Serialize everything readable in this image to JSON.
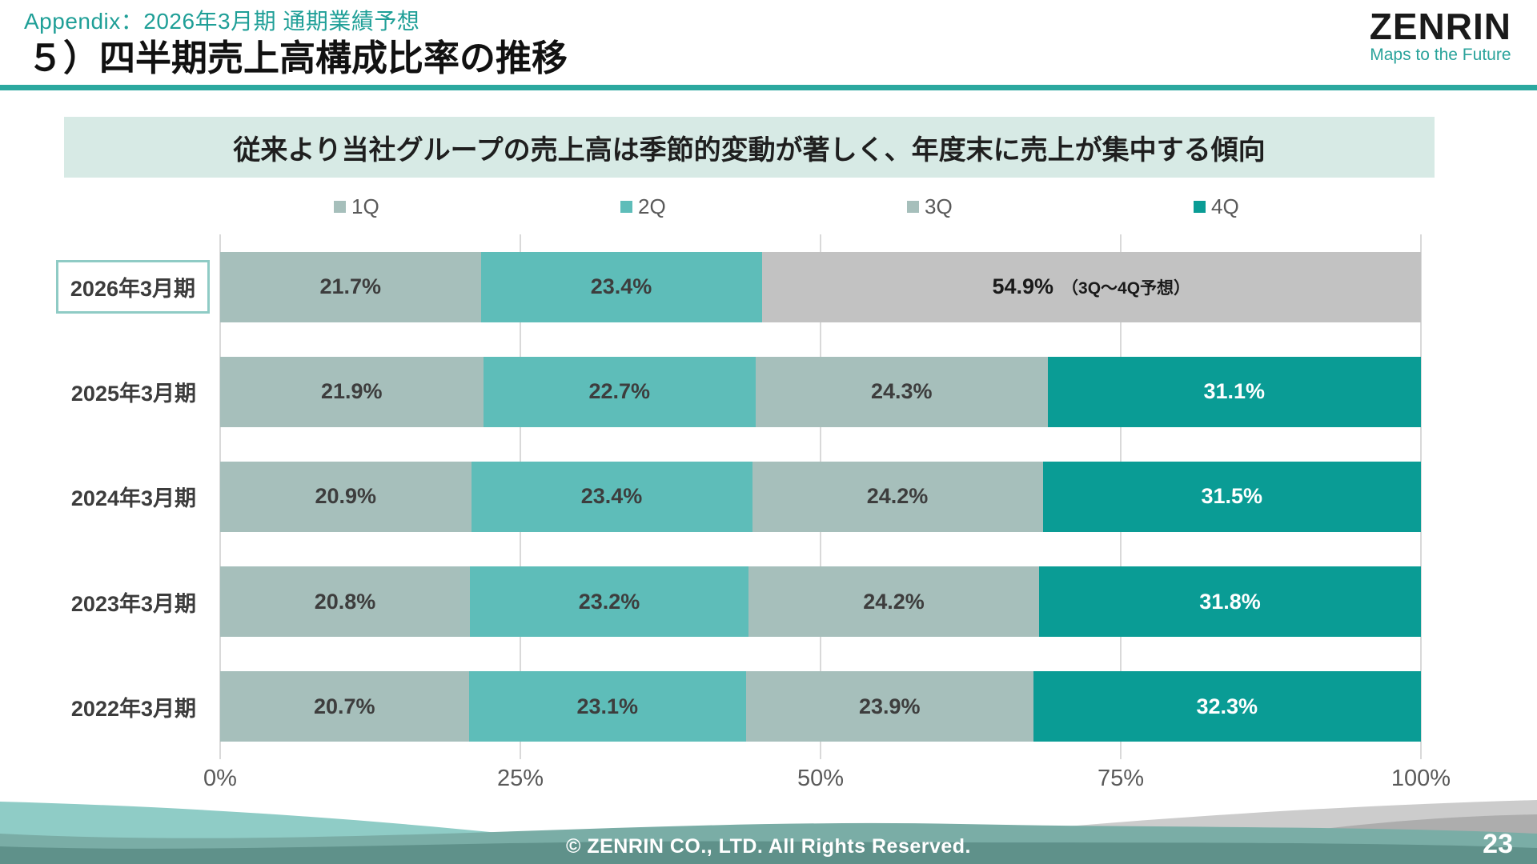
{
  "header": {
    "subtitle": "Appendix：2026年3月期 通期業績予想",
    "title": "５）四半期売上高構成比率の推移",
    "logo": {
      "name": "ZENRIN",
      "tagline": "Maps to the Future"
    }
  },
  "banner": {
    "text": "従来より当社グループの売上高は季節的変動が著しく、年度末に売上が集中する傾向"
  },
  "colors": {
    "accent_teal": "#2ca89f",
    "subtitle_teal": "#1f9f97",
    "banner_bg": "#d7eae5",
    "q1_q3_sage": "#a6bfbb",
    "q2_teal": "#5ebdb9",
    "q4_dark_teal": "#0a9c95",
    "forecast_gray": "#c2c2c2",
    "gridline": "#d9d9d9",
    "highlight_box_border": "#8fcbc5",
    "footer_band": "#5f918a"
  },
  "chart_data": {
    "type": "bar",
    "orientation": "horizontal",
    "stacked": true,
    "unit": "%",
    "xlim": [
      0,
      100
    ],
    "x_ticks": [
      "0%",
      "25%",
      "50%",
      "75%",
      "100%"
    ],
    "grid": "vertical-lines-on",
    "legend_position": "top",
    "legend": [
      {
        "label": "1Q",
        "color": "#a6bfbb"
      },
      {
        "label": "2Q",
        "color": "#5ebdb9"
      },
      {
        "label": "3Q",
        "color": "#a6bfbb"
      },
      {
        "label": "4Q",
        "color": "#0a9c95"
      }
    ],
    "rows": [
      {
        "category": "2026年3月期",
        "highlighted": true,
        "segments": [
          {
            "series": "1Q",
            "value": 21.7,
            "label": "21.7%",
            "color": "#a6bfbb",
            "text_color": "#3d3d3d"
          },
          {
            "series": "2Q",
            "value": 23.4,
            "label": "23.4%",
            "color": "#5ebdb9",
            "text_color": "#3d3d3d"
          },
          {
            "series": "3Q-4Q-forecast",
            "value": 54.9,
            "label": "54.9%",
            "note": "（3Q～4Q予想）",
            "color": "#c2c2c2",
            "text_color": "#1a1a1a"
          }
        ]
      },
      {
        "category": "2025年3月期",
        "highlighted": false,
        "segments": [
          {
            "series": "1Q",
            "value": 21.9,
            "label": "21.9%",
            "color": "#a6bfbb",
            "text_color": "#3d3d3d"
          },
          {
            "series": "2Q",
            "value": 22.7,
            "label": "22.7%",
            "color": "#5ebdb9",
            "text_color": "#3d3d3d"
          },
          {
            "series": "3Q",
            "value": 24.3,
            "label": "24.3%",
            "color": "#a6bfbb",
            "text_color": "#3d3d3d"
          },
          {
            "series": "4Q",
            "value": 31.1,
            "label": "31.1%",
            "color": "#0a9c95",
            "text_color": "#ffffff"
          }
        ]
      },
      {
        "category": "2024年3月期",
        "highlighted": false,
        "segments": [
          {
            "series": "1Q",
            "value": 20.9,
            "label": "20.9%",
            "color": "#a6bfbb",
            "text_color": "#3d3d3d"
          },
          {
            "series": "2Q",
            "value": 23.4,
            "label": "23.4%",
            "color": "#5ebdb9",
            "text_color": "#3d3d3d"
          },
          {
            "series": "3Q",
            "value": 24.2,
            "label": "24.2%",
            "color": "#a6bfbb",
            "text_color": "#3d3d3d"
          },
          {
            "series": "4Q",
            "value": 31.5,
            "label": "31.5%",
            "color": "#0a9c95",
            "text_color": "#ffffff"
          }
        ]
      },
      {
        "category": "2023年3月期",
        "highlighted": false,
        "segments": [
          {
            "series": "1Q",
            "value": 20.8,
            "label": "20.8%",
            "color": "#a6bfbb",
            "text_color": "#3d3d3d"
          },
          {
            "series": "2Q",
            "value": 23.2,
            "label": "23.2%",
            "color": "#5ebdb9",
            "text_color": "#3d3d3d"
          },
          {
            "series": "3Q",
            "value": 24.2,
            "label": "24.2%",
            "color": "#a6bfbb",
            "text_color": "#3d3d3d"
          },
          {
            "series": "4Q",
            "value": 31.8,
            "label": "31.8%",
            "color": "#0a9c95",
            "text_color": "#ffffff"
          }
        ]
      },
      {
        "category": "2022年3月期",
        "highlighted": false,
        "segments": [
          {
            "series": "1Q",
            "value": 20.7,
            "label": "20.7%",
            "color": "#a6bfbb",
            "text_color": "#3d3d3d"
          },
          {
            "series": "2Q",
            "value": 23.1,
            "label": "23.1%",
            "color": "#5ebdb9",
            "text_color": "#3d3d3d"
          },
          {
            "series": "3Q",
            "value": 23.9,
            "label": "23.9%",
            "color": "#a6bfbb",
            "text_color": "#3d3d3d"
          },
          {
            "series": "4Q",
            "value": 32.3,
            "label": "32.3%",
            "color": "#0a9c95",
            "text_color": "#ffffff"
          }
        ]
      }
    ]
  },
  "footer": {
    "copyright": "© ZENRIN CO., LTD. All Rights Reserved.",
    "page_number": "23"
  }
}
